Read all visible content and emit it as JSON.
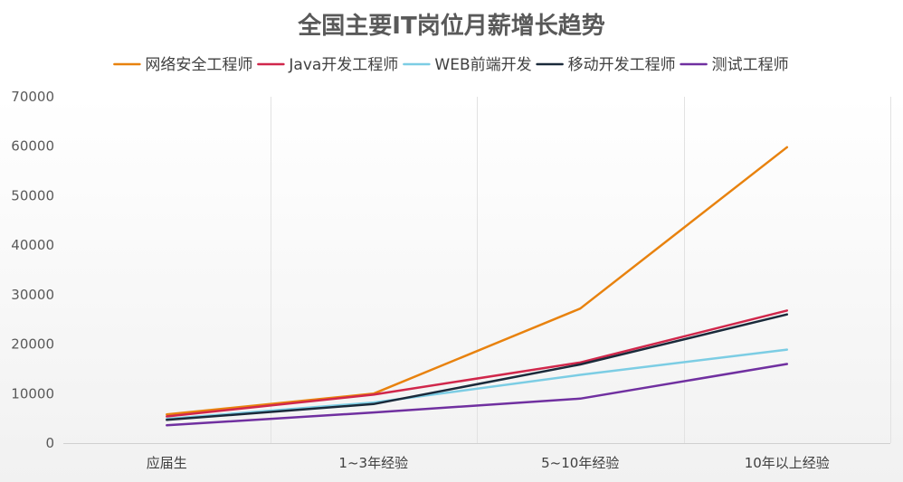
{
  "chart_data": {
    "type": "line",
    "title": "全国主要IT岗位月薪增长趋势",
    "xlabel": "",
    "ylabel": "",
    "categories": [
      "应届生",
      "1~3年经验",
      "5~10年经验",
      "10年以上经验"
    ],
    "ylim": [
      0,
      70000
    ],
    "yticks": [
      "0",
      "10000",
      "20000",
      "30000",
      "40000",
      "50000",
      "60000",
      "70000"
    ],
    "grid": "vertical",
    "legend": "top-center",
    "series": [
      {
        "name": "网络安全工程师",
        "color": "#E8820E",
        "values": [
          5800,
          10000,
          27200,
          59800
        ]
      },
      {
        "name": "Java开发工程师",
        "color": "#D0274B",
        "values": [
          5400,
          9800,
          16300,
          26800
        ]
      },
      {
        "name": "WEB前端开发",
        "color": "#7CCDE4",
        "values": [
          4900,
          8200,
          13800,
          18900
        ]
      },
      {
        "name": "移动开发工程师",
        "color": "#1A2A3A",
        "values": [
          4700,
          7900,
          15900,
          26000
        ]
      },
      {
        "name": "测试工程师",
        "color": "#7030A0",
        "values": [
          3600,
          6200,
          9000,
          16000
        ]
      }
    ]
  }
}
